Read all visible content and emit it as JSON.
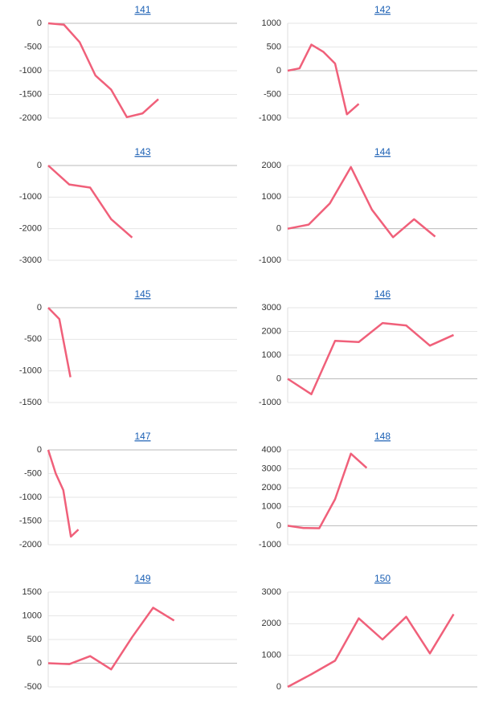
{
  "chart_data": [
    {
      "type": "line",
      "title": "141",
      "categories": [
        null,
        null,
        null,
        null,
        null,
        null,
        null,
        null,
        null,
        null,
        null,
        null,
        null
      ],
      "series": [
        {
          "color": "#f0607a",
          "values": [
            0,
            -30,
            -400,
            -1100,
            -1400,
            -1980,
            -1900,
            -1600,
            null,
            null,
            null,
            null,
            null
          ]
        }
      ],
      "ylim": [
        -2000,
        0
      ],
      "yticks": [
        0,
        -500,
        -1000,
        -1500,
        -2000
      ],
      "grid": true
    },
    {
      "type": "line",
      "title": "142",
      "categories": [
        null,
        null,
        null,
        null,
        null,
        null,
        null,
        null,
        null,
        null,
        null,
        null,
        null,
        null,
        null,
        null,
        null
      ],
      "series": [
        {
          "color": "#f0607a",
          "values": [
            0,
            50,
            550,
            400,
            150,
            -920,
            -700,
            null,
            null,
            null,
            null,
            null,
            null,
            null,
            null,
            null,
            null
          ]
        }
      ],
      "ylim": [
        -1000,
        1000
      ],
      "yticks": [
        1000,
        500,
        0,
        -500,
        -1000
      ],
      "grid": true
    },
    {
      "type": "line",
      "title": "143",
      "categories": [
        null,
        null,
        null,
        null,
        null,
        null,
        null,
        null,
        null,
        null
      ],
      "series": [
        {
          "color": "#f0607a",
          "values": [
            0,
            -600,
            -700,
            -1700,
            -2280,
            null,
            null,
            null,
            null,
            null
          ]
        }
      ],
      "ylim": [
        -3000,
        0
      ],
      "yticks": [
        0,
        -1000,
        -2000,
        -3000
      ],
      "grid": true
    },
    {
      "type": "line",
      "title": "144",
      "categories": [
        null,
        null,
        null,
        null,
        null,
        null,
        null,
        null,
        null,
        null
      ],
      "series": [
        {
          "color": "#f0607a",
          "values": [
            0,
            130,
            800,
            1950,
            600,
            -270,
            300,
            -250,
            null,
            null
          ]
        }
      ],
      "ylim": [
        -1000,
        2000
      ],
      "yticks": [
        2000,
        1000,
        0,
        -1000
      ],
      "grid": true
    },
    {
      "type": "line",
      "title": "145",
      "categories": [
        null,
        null,
        null,
        null,
        null,
        null,
        null,
        null,
        null,
        null,
        null,
        null,
        null,
        null,
        null,
        null,
        null,
        null
      ],
      "series": [
        {
          "color": "#f0607a",
          "values": [
            0,
            -180,
            -1100,
            null,
            null,
            null,
            null,
            null,
            null,
            null,
            null,
            null,
            null,
            null,
            null,
            null,
            null,
            null
          ]
        }
      ],
      "ylim": [
        -1500,
        0
      ],
      "yticks": [
        0,
        -500,
        -1000,
        -1500
      ],
      "grid": true
    },
    {
      "type": "line",
      "title": "146",
      "categories": [
        null,
        null,
        null,
        null,
        null,
        null,
        null,
        null,
        null
      ],
      "series": [
        {
          "color": "#f0607a",
          "values": [
            0,
            -650,
            1600,
            1550,
            2350,
            2250,
            1400,
            1850,
            null
          ]
        }
      ],
      "ylim": [
        -1000,
        3000
      ],
      "yticks": [
        3000,
        2000,
        1000,
        0,
        -1000
      ],
      "grid": true
    },
    {
      "type": "line",
      "title": "147",
      "categories": [
        null,
        null,
        null,
        null,
        null,
        null,
        null,
        null,
        null,
        null,
        null,
        null,
        null,
        null,
        null,
        null,
        null,
        null,
        null,
        null,
        null,
        null,
        null,
        null,
        null,
        null
      ],
      "series": [
        {
          "color": "#f0607a",
          "values": [
            0,
            -500,
            -850,
            -1830,
            -1680,
            null,
            null,
            null,
            null,
            null,
            null,
            null,
            null,
            null,
            null,
            null,
            null,
            null,
            null,
            null,
            null,
            null,
            null,
            null,
            null,
            null
          ]
        }
      ],
      "ylim": [
        -2000,
        0
      ],
      "yticks": [
        0,
        -500,
        -1000,
        -1500,
        -2000
      ],
      "grid": true
    },
    {
      "type": "line",
      "title": "148",
      "categories": [
        null,
        null,
        null,
        null,
        null,
        null,
        null,
        null,
        null,
        null,
        null,
        null,
        null
      ],
      "series": [
        {
          "color": "#f0607a",
          "values": [
            0,
            -120,
            -130,
            1400,
            3800,
            3050,
            null,
            null,
            null,
            null,
            null,
            null,
            null
          ]
        }
      ],
      "ylim": [
        -1000,
        4000
      ],
      "yticks": [
        4000,
        3000,
        2000,
        1000,
        0,
        -1000
      ],
      "grid": true
    },
    {
      "type": "line",
      "title": "149",
      "categories": [
        null,
        null,
        null,
        null,
        null,
        null,
        null,
        null,
        null,
        null
      ],
      "series": [
        {
          "color": "#f0607a",
          "values": [
            0,
            -20,
            150,
            -130,
            550,
            1170,
            900,
            null,
            null,
            null
          ]
        }
      ],
      "ylim": [
        -500,
        1500
      ],
      "yticks": [
        1500,
        1000,
        500,
        0,
        -500
      ],
      "grid": true
    },
    {
      "type": "line",
      "title": "150",
      "categories": [
        null,
        null,
        null,
        null,
        null,
        null,
        null,
        null,
        null
      ],
      "series": [
        {
          "color": "#f0607a",
          "values": [
            0,
            400,
            830,
            2170,
            1500,
            2220,
            1060,
            2300,
            null
          ]
        }
      ],
      "ylim": [
        0,
        3000
      ],
      "yticks": [
        3000,
        2000,
        1000,
        0
      ],
      "grid": true
    }
  ]
}
